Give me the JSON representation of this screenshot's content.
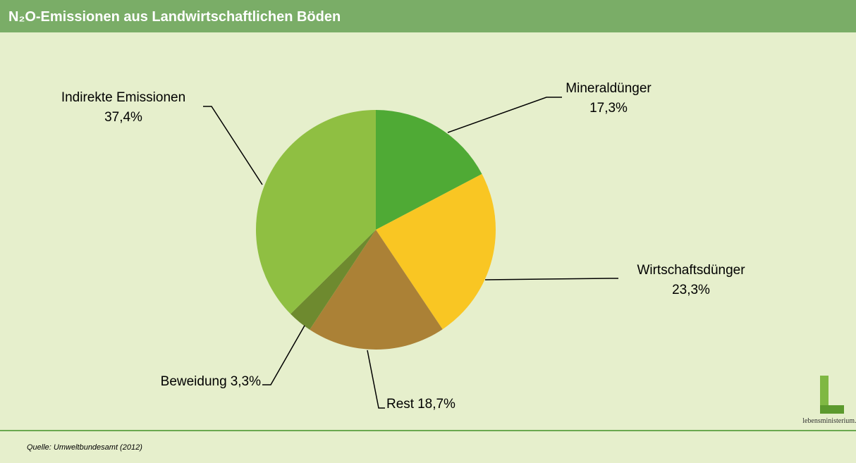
{
  "chart_data": {
    "type": "pie",
    "title": "N₂O-Emissionen aus Landwirtschaftlichen Böden",
    "categories": [
      "Mineraldünger",
      "Wirtschaftsdünger",
      "Rest",
      "Beweidung",
      "Indirekte Emissionen"
    ],
    "values": [
      17.3,
      23.3,
      18.7,
      3.3,
      37.4
    ],
    "value_labels": [
      "17,3%",
      "23,3%",
      "18,7%",
      "3,3%",
      "37,4%"
    ],
    "colors": [
      "#4faa35",
      "#f9c623",
      "#ab8136",
      "#6e8a2f",
      "#8fbf42"
    ],
    "source": "Quelle: Umweltbundesamt (2012)",
    "logo": "lebensministerium.at"
  }
}
